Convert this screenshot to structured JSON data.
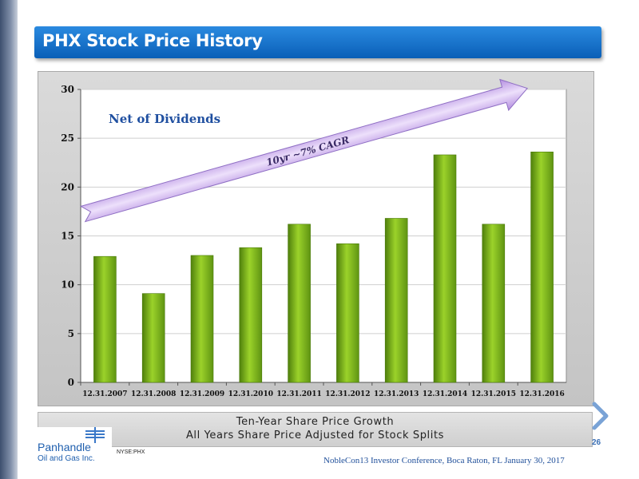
{
  "slide": {
    "title": "PHX Stock Price History",
    "subtitle_line1": "Ten-Year Share Price Growth",
    "subtitle_line2": "All Years Share Price Adjusted for Stock Splits",
    "logo_name": "Panhandle",
    "logo_sub": "Oil and Gas Inc.",
    "ticker": "NYSE:PHX",
    "footer": "NobleCon13 Investor Conference, Boca Raton, FL January 30, 2017",
    "page_number": "26"
  },
  "colors": {
    "title_bar": "#1677d2",
    "bar": "#7bb51c",
    "plot_bg": "#ffffff",
    "arrow": "#c6a8ea",
    "annotation_text": "#1f4fa0"
  },
  "chart_data": {
    "type": "bar",
    "categories": [
      "12.31.2007",
      "12.31.2008",
      "12.31.2009",
      "12.31.2010",
      "12.31.2011",
      "12.31.2012",
      "12.31.2013",
      "12.31.2014",
      "12.31.2015",
      "12.31.2016"
    ],
    "values": [
      12.9,
      9.1,
      13.0,
      13.8,
      16.2,
      14.2,
      16.8,
      23.3,
      16.2,
      23.6
    ],
    "ylim": [
      0,
      30
    ],
    "yticks": [
      0,
      5,
      10,
      15,
      20,
      25,
      30
    ],
    "grid": true,
    "annotations": {
      "net_label": "Net of Dividends",
      "arrow_label": "10yr ~7% CAGR"
    }
  }
}
